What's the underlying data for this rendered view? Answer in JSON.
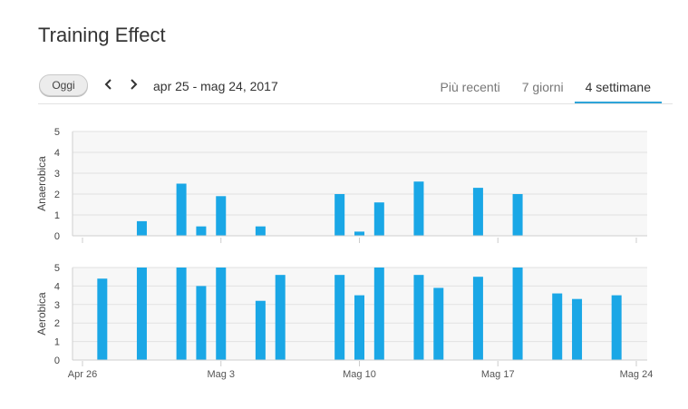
{
  "header": {
    "title": "Training Effect",
    "today_label": "Oggi",
    "date_range": "apr 25 - mag 24, 2017",
    "tabs": [
      {
        "label": "Più recenti",
        "active": false
      },
      {
        "label": "7 giorni",
        "active": false
      },
      {
        "label": "4 settimane",
        "active": true
      }
    ]
  },
  "colors": {
    "bar": "#1aa7e6",
    "accent": "#2ea4d8",
    "grid": "#e2e2e2",
    "panel": "#f7f7f7"
  },
  "chart_data": [
    {
      "type": "bar",
      "ylabel": "Anaerobica",
      "ylim": [
        0,
        5
      ],
      "yticks": [
        0,
        1,
        2,
        3,
        4,
        5
      ],
      "x": [
        "Apr 29",
        "May 1",
        "May 2",
        "May 3",
        "May 5",
        "May 9",
        "May 10",
        "May 11",
        "May 13",
        "May 16",
        "May 18"
      ],
      "values": [
        0.7,
        2.5,
        0.45,
        1.9,
        0.45,
        2.0,
        0.2,
        1.6,
        2.6,
        2.3,
        2.0
      ]
    },
    {
      "type": "bar",
      "ylabel": "Aerobica",
      "ylim": [
        0,
        5
      ],
      "yticks": [
        0,
        1,
        2,
        3,
        4,
        5
      ],
      "x": [
        "Apr 27",
        "Apr 29",
        "May 1",
        "May 2",
        "May 3",
        "May 5",
        "May 6",
        "May 9",
        "May 10",
        "May 11",
        "May 13",
        "May 14",
        "May 16",
        "May 18",
        "May 20",
        "May 21",
        "May 23"
      ],
      "values": [
        4.4,
        5.0,
        5.0,
        4.0,
        5.0,
        3.2,
        4.6,
        4.6,
        3.5,
        5.0,
        4.6,
        3.9,
        4.5,
        5.0,
        3.6,
        3.3,
        3.5
      ]
    }
  ],
  "x_axis": {
    "start": "Apr 25",
    "end": "May 24",
    "ticks": [
      {
        "date": "Apr 26",
        "label": "Apr 26"
      },
      {
        "date": "May 3",
        "label": "Mag 3"
      },
      {
        "date": "May 10",
        "label": "Mag 10"
      },
      {
        "date": "May 17",
        "label": "Mag 17"
      },
      {
        "date": "May 24",
        "label": "Mag 24"
      }
    ]
  }
}
